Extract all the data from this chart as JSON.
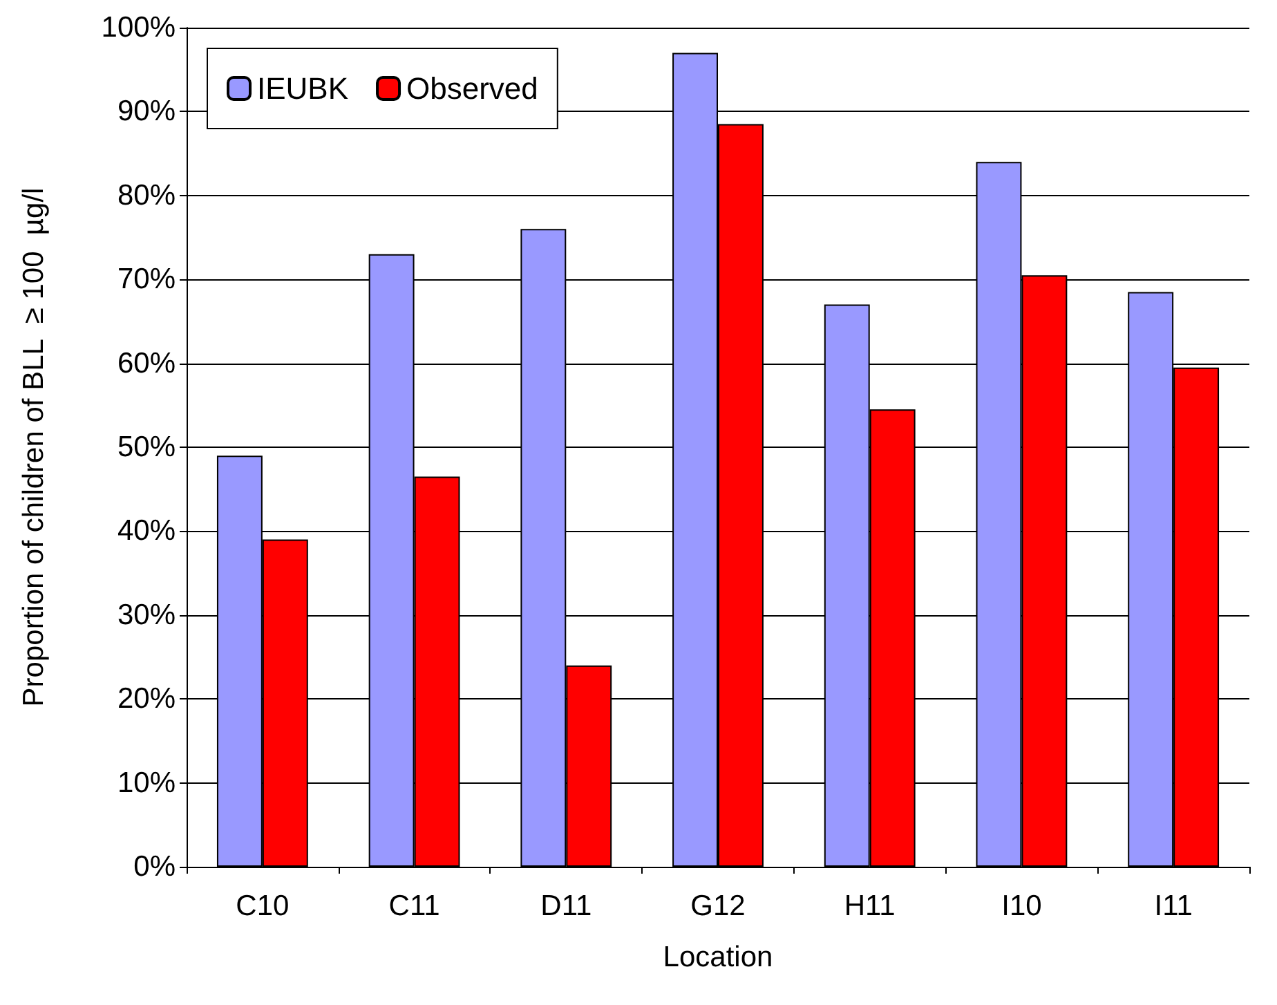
{
  "chart_data": {
    "type": "bar",
    "xlabel": "Location",
    "ylabel": "Proportion of children of BLL  ≥ 100  µg/l",
    "categories": [
      "C10",
      "C11",
      "D11",
      "G12",
      "H11",
      "I10",
      "I11"
    ],
    "series": [
      {
        "name": "IEUBK",
        "color": "#9999ff",
        "values": [
          49,
          73,
          76,
          97,
          67,
          84,
          68.5
        ]
      },
      {
        "name": "Observed",
        "color": "#ff0000",
        "values": [
          39,
          46.5,
          24,
          88.5,
          54.5,
          70.5,
          59.5
        ]
      }
    ],
    "ylim": [
      0,
      100
    ],
    "yticks": [
      {
        "value": 0,
        "label": "0%"
      },
      {
        "value": 10,
        "label": "10%"
      },
      {
        "value": 20,
        "label": "20%"
      },
      {
        "value": 30,
        "label": "30%"
      },
      {
        "value": 40,
        "label": "40%"
      },
      {
        "value": 50,
        "label": "50%"
      },
      {
        "value": 60,
        "label": "60%"
      },
      {
        "value": 70,
        "label": "70%"
      },
      {
        "value": 80,
        "label": "80%"
      },
      {
        "value": 90,
        "label": "90%"
      },
      {
        "value": 100,
        "label": "100%"
      }
    ],
    "grid": "y",
    "legend": "top left"
  }
}
